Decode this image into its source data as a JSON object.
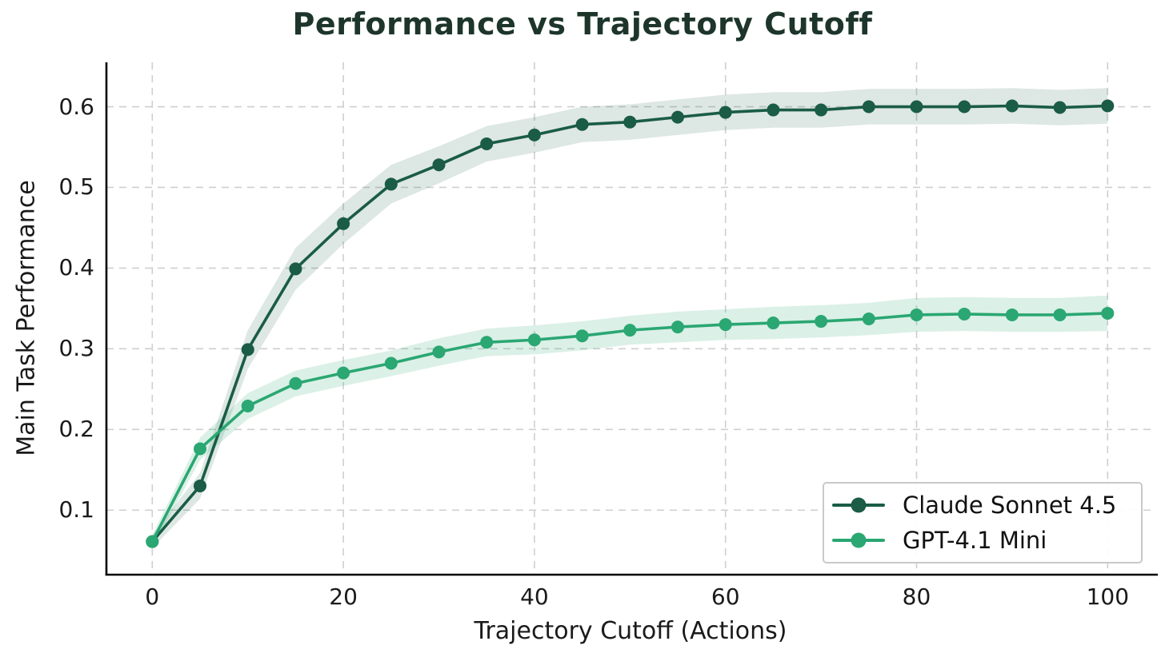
{
  "title": "Performance vs Trajectory Cutoff",
  "chart_data": {
    "type": "line",
    "title": "Performance vs Trajectory Cutoff",
    "xlabel": "Trajectory Cutoff (Actions)",
    "ylabel": "Main Task Performance",
    "x": [
      0,
      5,
      10,
      15,
      20,
      25,
      30,
      35,
      40,
      45,
      50,
      55,
      60,
      65,
      70,
      75,
      80,
      85,
      90,
      95,
      100
    ],
    "series": [
      {
        "name": "Claude Sonnet 4.5",
        "color": "#1a5c45",
        "band_opacity": 0.15,
        "values": [
          0.061,
          0.13,
          0.299,
          0.399,
          0.455,
          0.504,
          0.528,
          0.554,
          0.565,
          0.578,
          0.581,
          0.587,
          0.593,
          0.596,
          0.596,
          0.6,
          0.6,
          0.6,
          0.601,
          0.599,
          0.601
        ],
        "band_halfwidth": [
          0.008,
          0.016,
          0.024,
          0.026,
          0.025,
          0.024,
          0.023,
          0.022,
          0.022,
          0.022,
          0.022,
          0.022,
          0.022,
          0.022,
          0.022,
          0.022,
          0.022,
          0.022,
          0.022,
          0.022,
          0.022
        ]
      },
      {
        "name": "GPT-4.1 Mini",
        "color": "#2aa772",
        "band_opacity": 0.17,
        "values": [
          0.061,
          0.176,
          0.229,
          0.257,
          0.27,
          0.282,
          0.296,
          0.308,
          0.311,
          0.316,
          0.323,
          0.327,
          0.33,
          0.332,
          0.334,
          0.337,
          0.342,
          0.343,
          0.342,
          0.342,
          0.344
        ],
        "band_halfwidth": [
          0.008,
          0.014,
          0.016,
          0.016,
          0.016,
          0.016,
          0.017,
          0.017,
          0.018,
          0.018,
          0.018,
          0.019,
          0.019,
          0.02,
          0.02,
          0.02,
          0.021,
          0.021,
          0.021,
          0.021,
          0.022
        ]
      }
    ],
    "xlim": [
      -4.8,
      105.0
    ],
    "ylim": [
      0.02,
      0.655
    ],
    "xticks": {
      "values": [
        0,
        20,
        40,
        60,
        80,
        100
      ],
      "labels": [
        "0",
        "20",
        "40",
        "60",
        "80",
        "100"
      ]
    },
    "yticks": {
      "values": [
        0.1,
        0.2,
        0.3,
        0.4,
        0.5,
        0.6
      ],
      "labels": [
        "0.1",
        "0.2",
        "0.3",
        "0.4",
        "0.5",
        "0.6"
      ]
    },
    "grid": {
      "show": true,
      "style": "dashed",
      "color": "#cfcfcf"
    },
    "legend_position": "lower right"
  },
  "style": {
    "spine_color": "#000000",
    "title_color": "#1d352b",
    "text_color": "#1a1a1a",
    "legend_border": "#c9c9c9"
  }
}
